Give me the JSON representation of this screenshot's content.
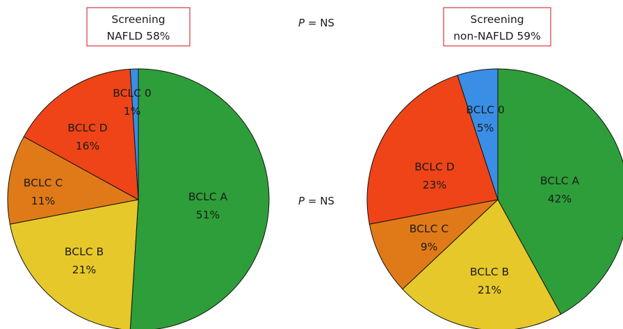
{
  "p_labels": {
    "top": {
      "symbol": "P",
      "rest": " = NS"
    },
    "middle": {
      "symbol": "P",
      "rest": " = NS"
    }
  },
  "chart_data": [
    {
      "type": "pie",
      "title": [
        "Screening",
        "NAFLD 58%"
      ],
      "title_box_color": "#d9363e",
      "categories": [
        "BCLC A",
        "BCLC B",
        "BCLC C",
        "BCLC D",
        "BCLC 0"
      ],
      "values": [
        51,
        21,
        11,
        16,
        1
      ],
      "value_labels": [
        "51%",
        "21%",
        "11%",
        "16%",
        "1%"
      ],
      "colors": [
        "#2e9e3a",
        "#e6c82a",
        "#e07a18",
        "#ee4418",
        "#3a8ee6"
      ],
      "start_angle": "12 o'clock",
      "direction": "clockwise"
    },
    {
      "type": "pie",
      "title": [
        "Screening",
        "non-NAFLD 59%"
      ],
      "title_box_color": "#d9363e",
      "categories": [
        "BCLC A",
        "BCLC B",
        "BCLC C",
        "BCLC D",
        "BCLC 0"
      ],
      "values": [
        42,
        21,
        9,
        23,
        5
      ],
      "value_labels": [
        "42%",
        "21%",
        "9%",
        "23%",
        "5%"
      ],
      "colors": [
        "#2e9e3a",
        "#e6c82a",
        "#e07a18",
        "#ee4418",
        "#3a8ee6"
      ],
      "start_angle": "12 o'clock",
      "direction": "clockwise"
    }
  ]
}
